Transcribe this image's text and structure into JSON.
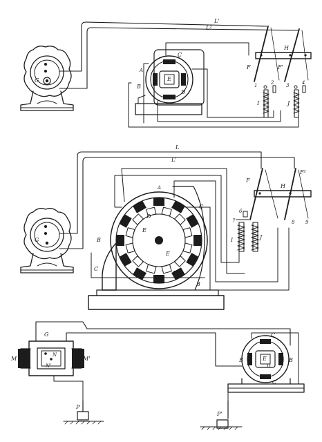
{
  "figures": [
    {
      "id": "fig1",
      "labels": {
        "generator": "G",
        "line_outer": "L'",
        "line_inner": "L²",
        "motor_core": "A",
        "armature": "E",
        "pole": "C",
        "winding_outer": "B",
        "winding_inner": "D",
        "lever_left": "F",
        "lever_right": "F'",
        "crossbar": "H",
        "coil_left": "I",
        "coil_right": "J",
        "contact_1": "1",
        "contact_2": "2",
        "contact_3": "3",
        "contact_4": "4"
      }
    },
    {
      "id": "fig2",
      "labels": {
        "generator": "G",
        "line_outer": "L",
        "line_inner": "L'",
        "motor_core": "A",
        "armature_top": "E",
        "armature_bottom": "E",
        "pole_right": "C",
        "pole_left": "C",
        "winding_left": "B",
        "winding_bottom": "B",
        "winding_inner_top": "D",
        "winding_inner_bottom": "D",
        "lever_left": "F",
        "lever_right": "F²",
        "crossbar": "H",
        "coil_left": "I",
        "coil_right": "J",
        "contact_6": "6",
        "contact_7": "7",
        "contact_8": "8",
        "contact_9": "9"
      }
    },
    {
      "id": "fig3",
      "labels": {
        "generator": "G",
        "magnet_left": "M",
        "magnet_right": "M'",
        "gen_coil_top": "N",
        "gen_coil_bottom": "N'",
        "motor_pole_top": "C",
        "motor_pole_bottom": "C",
        "motor_armature": "E",
        "motor_inner": "D",
        "motor_winding_left": "B",
        "motor_winding_right": "B",
        "ground_left": "P",
        "ground_right": "P'"
      }
    }
  ]
}
